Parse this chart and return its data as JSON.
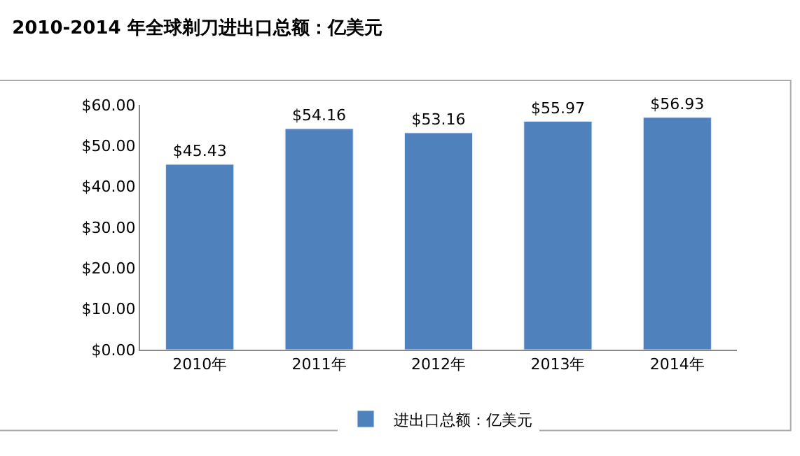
{
  "chart_data": {
    "type": "bar",
    "title": "2010-2014 年全球剃刀进出口总额：亿美元",
    "categories": [
      "2010年",
      "2011年",
      "2012年",
      "2013年",
      "2014年"
    ],
    "series": [
      {
        "name": "进出口总额：亿美元",
        "color": "#4f81bd",
        "values": [
          45.43,
          54.16,
          53.16,
          55.97,
          56.93
        ],
        "value_labels": [
          "$45.43",
          "$54.16",
          "$53.16",
          "$55.97",
          "$56.93"
        ]
      }
    ],
    "ylim": [
      0,
      60
    ],
    "yticks": [
      {
        "value": 0,
        "label": "$0.00"
      },
      {
        "value": 10,
        "label": "$10.00"
      },
      {
        "value": 20,
        "label": "$20.00"
      },
      {
        "value": 30,
        "label": "$30.00"
      },
      {
        "value": 40,
        "label": "$40.00"
      },
      {
        "value": 50,
        "label": "$50.00"
      },
      {
        "value": 60,
        "label": "$60.00"
      }
    ],
    "legend": "bottom"
  }
}
